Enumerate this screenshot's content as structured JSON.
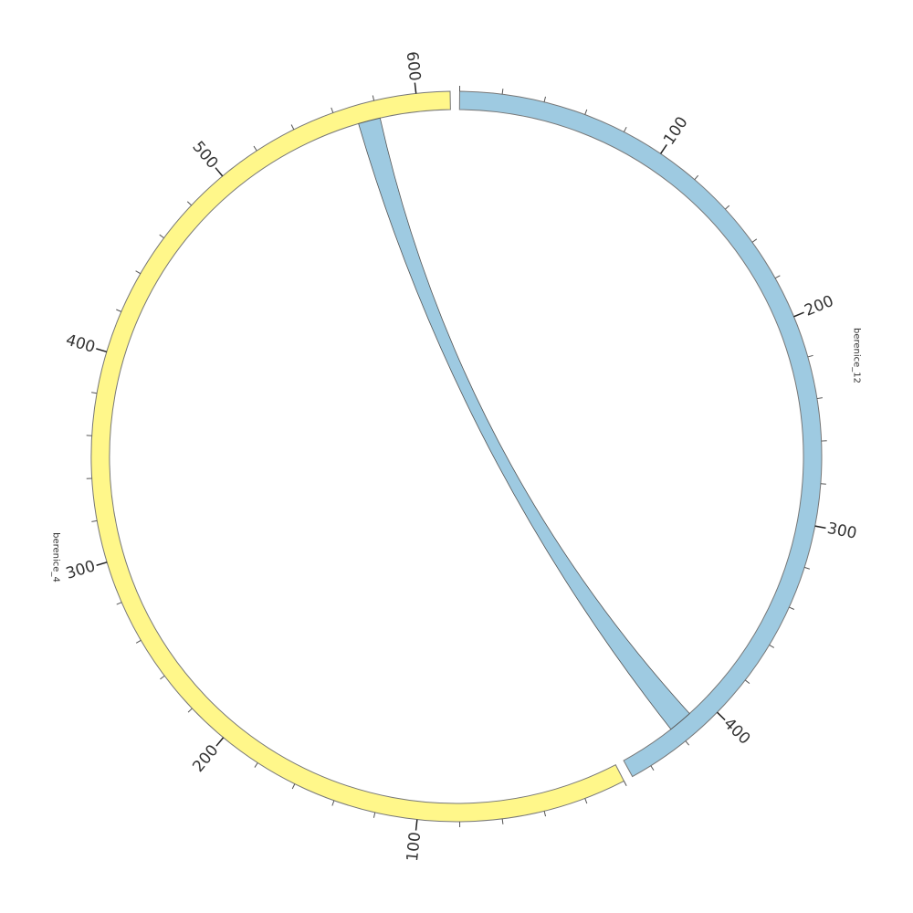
{
  "chart_data": {
    "type": "chord",
    "segments": [
      {
        "name": "berenice_12",
        "color": "#9ecae1",
        "length": 450,
        "ticks": [
          100,
          200,
          300,
          400
        ]
      },
      {
        "name": "berenice_4",
        "color": "#fff78a",
        "length": 616,
        "ticks": [
          100,
          200,
          300,
          400,
          500,
          600
        ]
      }
    ],
    "minor_tick_step": 20,
    "links": [
      {
        "source": "berenice_12",
        "source_start": 410,
        "source_end": 422,
        "target": "berenice_4",
        "target_start": 570,
        "target_end": 581
      }
    ]
  }
}
